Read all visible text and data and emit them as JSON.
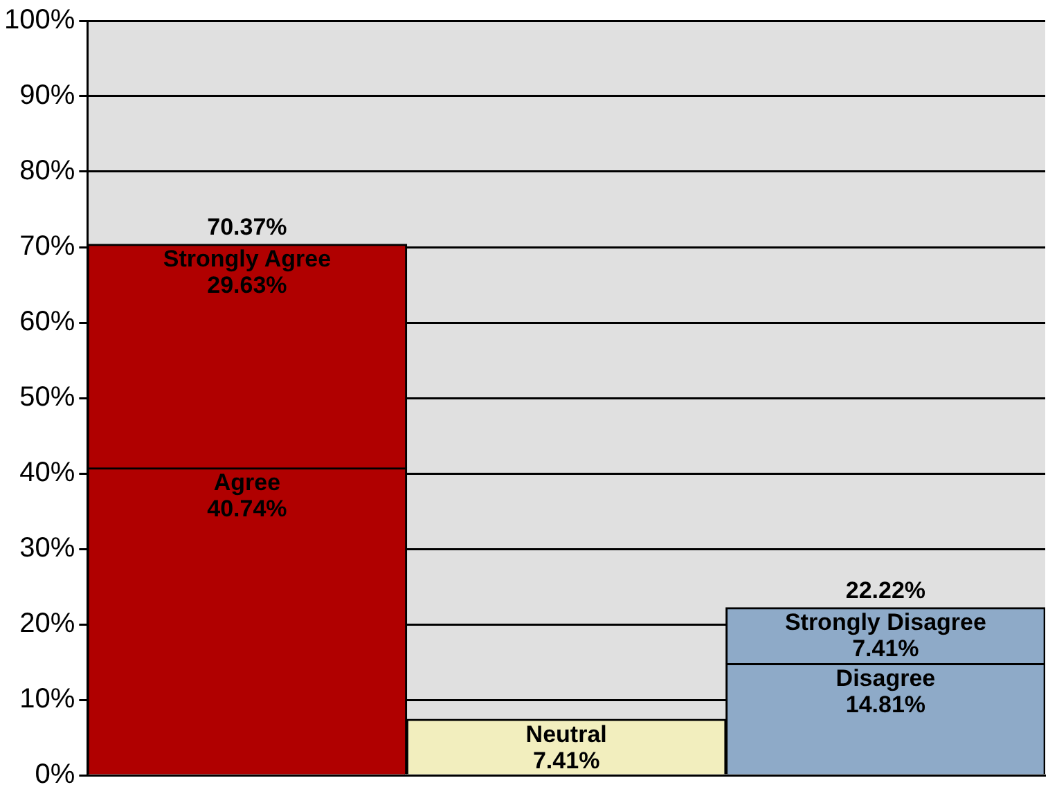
{
  "chart_data": {
    "type": "bar",
    "stacked": true,
    "categories": [
      null,
      null,
      null
    ],
    "series": [
      {
        "name": "Agree",
        "color": "#b00000",
        "values": [
          40.74,
          null,
          null
        ],
        "value_labels": [
          "40.74%",
          null,
          null
        ]
      },
      {
        "name": "Strongly Agree",
        "color": "#b00000",
        "values": [
          29.63,
          null,
          null
        ],
        "value_labels": [
          "29.63%",
          null,
          null
        ]
      },
      {
        "name": "Neutral",
        "color": "#f2eebe",
        "values": [
          null,
          7.41,
          null
        ],
        "value_labels": [
          null,
          "7.41%",
          null
        ]
      },
      {
        "name": "Disagree",
        "color": "#8eaac8",
        "values": [
          null,
          null,
          14.81
        ],
        "value_labels": [
          null,
          null,
          "14.81%"
        ]
      },
      {
        "name": "Strongly Disagree",
        "color": "#8eaac8",
        "values": [
          null,
          null,
          7.41
        ],
        "value_labels": [
          null,
          null,
          "7.41%"
        ]
      }
    ],
    "totals": [
      "70.37%",
      null,
      "22.22%"
    ],
    "ylim": [
      0,
      100
    ],
    "yticks": [
      {
        "value": 0,
        "label": "0%"
      },
      {
        "value": 10,
        "label": "10%"
      },
      {
        "value": 20,
        "label": "20%"
      },
      {
        "value": 30,
        "label": "30%"
      },
      {
        "value": 40,
        "label": "40%"
      },
      {
        "value": 50,
        "label": "50%"
      },
      {
        "value": 60,
        "label": "60%"
      },
      {
        "value": 70,
        "label": "70%"
      },
      {
        "value": 80,
        "label": "80%"
      },
      {
        "value": 90,
        "label": "90%"
      },
      {
        "value": 100,
        "label": "100%"
      }
    ],
    "grid": "y",
    "legend": false
  }
}
